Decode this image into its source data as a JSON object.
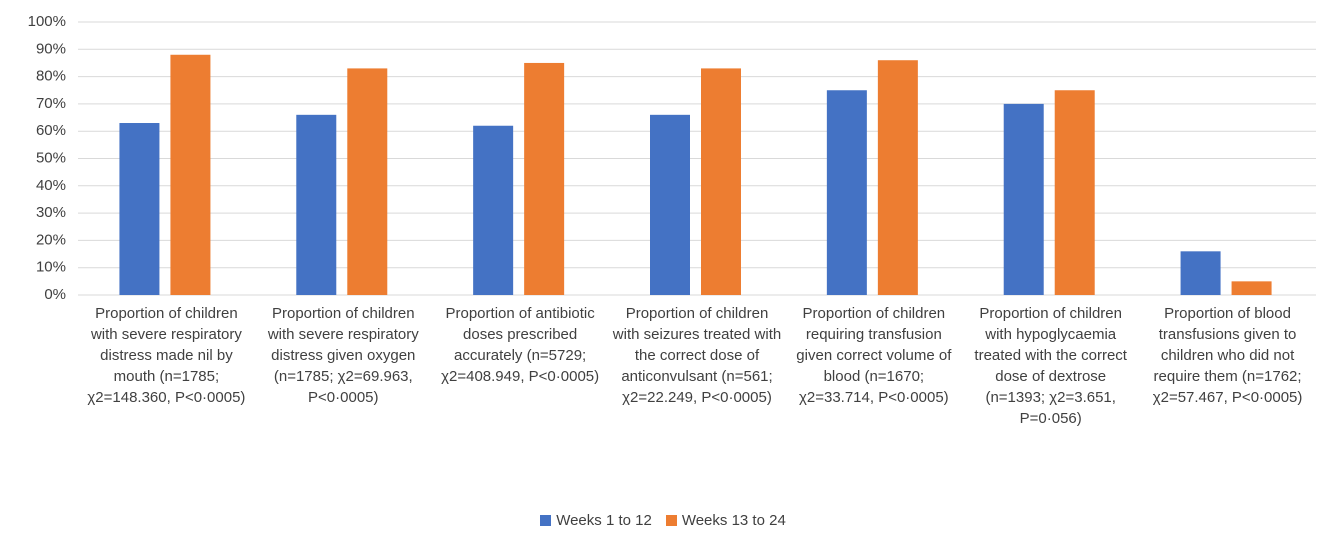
{
  "chart_data": {
    "type": "bar",
    "categories": [
      "Proportion of children with severe respiratory distress made nil by mouth (n=1785; χ2=148.360, P<0·0005)",
      "Proportion of children with severe respiratory distress given oxygen (n=1785; χ2=69.963, P<0·0005)",
      "Proportion of antibiotic doses prescribed accurately (n=5729; χ2=408.949, P<0·0005)",
      "Proportion of children with seizures treated with the correct dose of anticonvulsant (n=561; χ2=22.249, P<0·0005)",
      "Proportion of children requiring transfusion given correct volume of blood (n=1670; χ2=33.714, P<0·0005)",
      "Proportion of children with hypoglycaemia treated with the correct dose of dextrose (n=1393; χ2=3.651, P=0·056)",
      "Proportion of blood transfusions given to children who did not require them (n=1762; χ2=57.467, P<0·0005)"
    ],
    "series": [
      {
        "name": "Weeks 1 to 12",
        "color": "#4472c4",
        "values": [
          63,
          66,
          62,
          66,
          75,
          70,
          16
        ]
      },
      {
        "name": "Weeks 13 to 24",
        "color": "#ed7d31",
        "values": [
          88,
          83,
          85,
          83,
          86,
          75,
          5
        ]
      }
    ],
    "ylim": [
      0,
      100
    ],
    "yticks": [
      {
        "value": 0,
        "label": "0%"
      },
      {
        "value": 10,
        "label": "10%"
      },
      {
        "value": 20,
        "label": "20%"
      },
      {
        "value": 30,
        "label": "30%"
      },
      {
        "value": 40,
        "label": "40%"
      },
      {
        "value": 50,
        "label": "50%"
      },
      {
        "value": 60,
        "label": "60%"
      },
      {
        "value": 70,
        "label": "70%"
      },
      {
        "value": 80,
        "label": "80%"
      },
      {
        "value": 90,
        "label": "90%"
      },
      {
        "value": 100,
        "label": "100%"
      }
    ],
    "grid": true,
    "legend": "bottom"
  }
}
